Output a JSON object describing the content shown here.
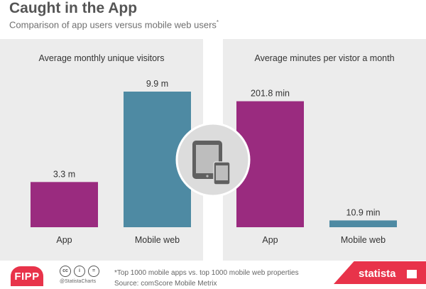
{
  "header": {
    "title": "Caught in the App",
    "subtitle": "Comparison of app users versus mobile web users",
    "subtitle_mark": "*"
  },
  "colors": {
    "app": "#9a2b7f",
    "mobile_web": "#4e8aa3",
    "panel": "#ececec",
    "brand": "#e8334a"
  },
  "icons": [
    "tablet-icon",
    "smartphone-icon",
    "creative-commons-icon",
    "attribution-icon",
    "equals-icon"
  ],
  "chart_data": [
    {
      "type": "bar",
      "title": "Average monthly unique visitors",
      "categories": [
        "App",
        "Mobile web"
      ],
      "values": [
        3.3,
        9.9
      ],
      "value_labels": [
        "3.3 m",
        "9.9 m"
      ],
      "ylim": [
        0,
        9.9
      ],
      "grid": false,
      "legend": "none"
    },
    {
      "type": "bar",
      "title": "Average minutes per vistor a month",
      "categories": [
        "App",
        "Mobile web"
      ],
      "values": [
        201.8,
        10.9
      ],
      "value_labels": [
        "201.8 min",
        "10.9 min"
      ],
      "ylim": [
        0,
        232
      ],
      "grid": false,
      "legend": "none"
    }
  ],
  "footer": {
    "logo": "FIPP",
    "handle": "@StatistaCharts",
    "footnote": "*Top 1000 mobile apps vs. top 1000 mobile web properties",
    "source": "Source: comScore Mobile Metrix",
    "brand": "statista"
  }
}
